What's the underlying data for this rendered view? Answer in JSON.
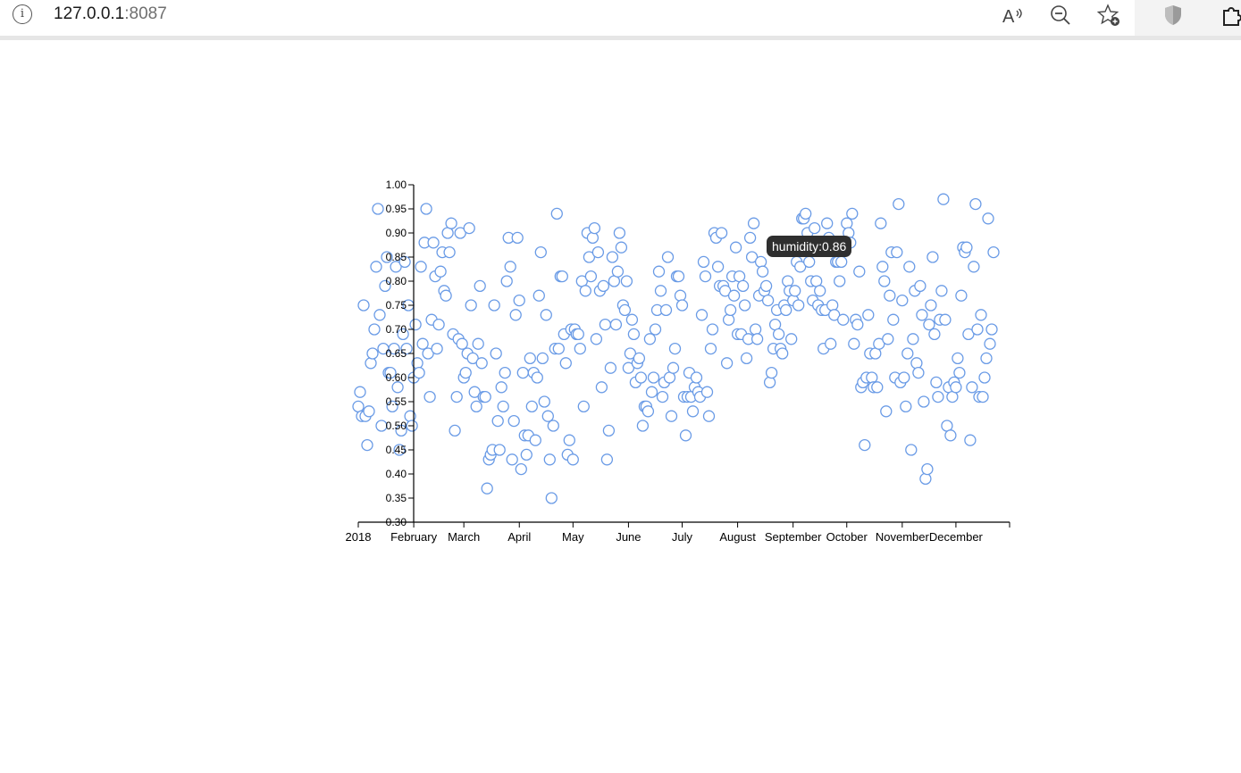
{
  "browser": {
    "url_host": "127.0.0.1",
    "url_port": ":8087",
    "toolbar_icons": [
      "read-aloud-icon",
      "zoom-out-icon",
      "add-favorite-icon",
      "shield-extension-icon",
      "extensions-icon"
    ]
  },
  "tooltip": {
    "text": "humidity:0.86"
  },
  "colors": {
    "point_stroke": "#6a9be6",
    "axis": "#000000",
    "tooltip_bg": "#2f2f2f"
  },
  "chart_data": {
    "type": "scatter",
    "title": "",
    "xlabel": "",
    "ylabel": "",
    "x_domain": [
      "2018-01-01",
      "2018-12-31"
    ],
    "ylim": [
      0.3,
      1.0
    ],
    "grid": false,
    "x_ticks": [
      "2018",
      "February",
      "March",
      "April",
      "May",
      "June",
      "July",
      "August",
      "September",
      "October",
      "November",
      "December"
    ],
    "y_ticks": [
      "0.30",
      "0.35",
      "0.40",
      "0.45",
      "0.50",
      "0.55",
      "0.60",
      "0.65",
      "0.70",
      "0.75",
      "0.80",
      "0.85",
      "0.90",
      "0.95",
      "1.00"
    ],
    "series": [
      {
        "start_date": "2018-01-01",
        "y": [
          0.54,
          0.57,
          0.52,
          0.75,
          0.52,
          0.46,
          0.53,
          0.63,
          0.65,
          0.7,
          0.83,
          0.95,
          0.73,
          0.5,
          0.66,
          0.79,
          0.85,
          0.61,
          0.61,
          0.54,
          0.66,
          0.83,
          0.58,
          0.45,
          0.49,
          0.69,
          0.84,
          0.66,
          0.75,
          0.52,
          0.5,
          0.6,
          0.71,
          0.63,
          0.61,
          0.83,
          0.67,
          0.88,
          0.95,
          0.65,
          0.56,
          0.72,
          0.88,
          0.81,
          0.66,
          0.71,
          0.82,
          0.86,
          0.78,
          0.77,
          0.9,
          0.86,
          0.92,
          0.69,
          0.49,
          0.56,
          0.68,
          0.9,
          0.67,
          0.6,
          0.61,
          0.65,
          0.91,
          0.75,
          0.64,
          0.57,
          0.54,
          0.67,
          0.79,
          0.63,
          0.56,
          0.56,
          0.37,
          0.43,
          0.44,
          0.45,
          0.75,
          0.65,
          0.51,
          0.45,
          0.58,
          0.54,
          0.61,
          0.8,
          0.89,
          0.83,
          0.43,
          0.51,
          0.73,
          0.89,
          0.76,
          0.41,
          0.61,
          0.48,
          0.44,
          0.48,
          0.64,
          0.54,
          0.61,
          0.47,
          0.6,
          0.77,
          0.86,
          0.64,
          0.55,
          0.73,
          0.52,
          0.43,
          0.35,
          0.5,
          0.66,
          0.94,
          0.66,
          0.81,
          0.81,
          0.69,
          0.63,
          0.44,
          0.47,
          0.7,
          0.43,
          0.7,
          0.69,
          0.69,
          0.66,
          0.8,
          0.54,
          0.78,
          0.9,
          0.85,
          0.81,
          0.89,
          0.91,
          0.68,
          0.86,
          0.78,
          0.58,
          0.79,
          0.71,
          0.43,
          0.49,
          0.62,
          0.85,
          0.8,
          0.71,
          0.82,
          0.9,
          0.87,
          0.75,
          0.74,
          0.8,
          0.62,
          0.65,
          0.72,
          0.69,
          0.59,
          0.63,
          0.64,
          0.6,
          0.5,
          0.54,
          0.54,
          0.53,
          0.68,
          0.57,
          0.6,
          0.7,
          0.74,
          0.82,
          0.78,
          0.56,
          0.59,
          0.74,
          0.85,
          0.6,
          0.52,
          0.62,
          0.66,
          0.81,
          0.81,
          0.77,
          0.75,
          0.56,
          0.48,
          0.56,
          0.61,
          0.56,
          0.53,
          0.58,
          0.6,
          0.57,
          0.56,
          0.73,
          0.84,
          0.81,
          0.57,
          0.52,
          0.66,
          0.7,
          0.9,
          0.89,
          0.83,
          0.79,
          0.9,
          0.79,
          0.78,
          0.63,
          0.72,
          0.74,
          0.81,
          0.77,
          0.87,
          0.69,
          0.81,
          0.69,
          0.79,
          0.75,
          0.64,
          0.68,
          0.89,
          0.85,
          0.92,
          0.7,
          0.68,
          0.77,
          0.84,
          0.82,
          0.78,
          0.79,
          0.76,
          0.59,
          0.61,
          0.66,
          0.71,
          0.74,
          0.69,
          0.66,
          0.65,
          0.75,
          0.74,
          0.8,
          0.78,
          0.68,
          0.76,
          0.78,
          0.84,
          0.75,
          0.83,
          0.93,
          0.93,
          0.94,
          0.9,
          0.84,
          0.8,
          0.76,
          0.91,
          0.8,
          0.75,
          0.78,
          0.74,
          0.66,
          0.74,
          0.92,
          0.89,
          0.67,
          0.75,
          0.73,
          0.84,
          0.84,
          0.8,
          0.84,
          0.72,
          0.88,
          0.92,
          0.9,
          0.88,
          0.94,
          0.67,
          0.72,
          0.71,
          0.82,
          0.58,
          0.59,
          0.46,
          0.6,
          0.73,
          0.65,
          0.6,
          0.58,
          0.65,
          0.58,
          0.67,
          0.92,
          0.83,
          0.8,
          0.53,
          0.68,
          0.77,
          0.86,
          0.72,
          0.6,
          0.86,
          0.96,
          0.59,
          0.76,
          0.6,
          0.54,
          0.65,
          0.83,
          0.45,
          0.68,
          0.78,
          0.63,
          0.61,
          0.79,
          0.73,
          0.55,
          0.39,
          0.41,
          0.71,
          0.75,
          0.85,
          0.69,
          0.59,
          0.56,
          0.72,
          0.78,
          0.97,
          0.72,
          0.5,
          0.58,
          0.48,
          0.56,
          0.59,
          0.58,
          0.64,
          0.61,
          0.77,
          0.87,
          0.86,
          0.87,
          0.69,
          0.47,
          0.58,
          0.83,
          0.96,
          0.7,
          0.56,
          0.73,
          0.56,
          0.6,
          0.64,
          0.93,
          0.67,
          0.7,
          0.86
        ]
      }
    ]
  }
}
